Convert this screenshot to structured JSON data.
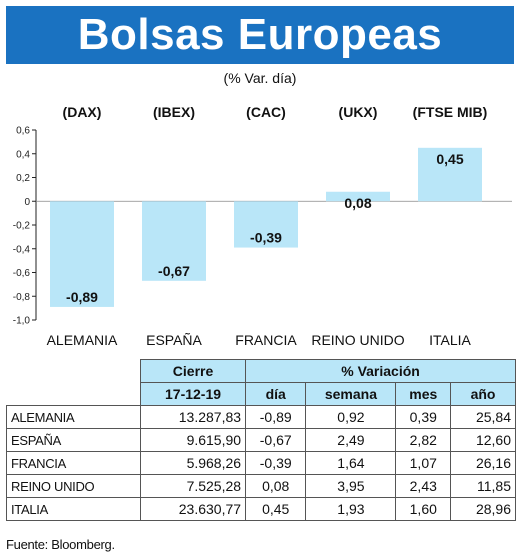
{
  "title": "Bolsas Europeas",
  "subtitle": "(% Var. día)",
  "chart_data": {
    "type": "bar",
    "indices": [
      "(DAX)",
      "(IBEX)",
      "(CAC)",
      "(UKX)",
      "(FTSE MIB)"
    ],
    "categories": [
      "ALEMANIA",
      "ESPAÑA",
      "FRANCIA",
      "REINO UNIDO",
      "ITALIA"
    ],
    "values": [
      -0.89,
      -0.67,
      -0.39,
      0.08,
      0.45
    ],
    "value_labels": [
      "-0,89",
      "-0,67",
      "-0,39",
      "0,08",
      "0,45"
    ],
    "ylim": [
      -1.0,
      0.6
    ],
    "yticks": [
      0.6,
      0.4,
      0.2,
      0,
      -0.2,
      -0.4,
      -0.6,
      -0.8,
      -1.0
    ],
    "ytick_labels": [
      "0,6",
      "0,4",
      "0,2",
      "0",
      "-0,2",
      "-0,4",
      "-0,6",
      "-0,8",
      "-1,0"
    ],
    "bar_color": "#b9e6f8",
    "grid": false
  },
  "table": {
    "header_cierre": "Cierre",
    "header_variacion": "% Variación",
    "date": "17-12-19",
    "col_dia": "día",
    "col_semana": "semana",
    "col_mes": "mes",
    "col_anio": "año",
    "rows": [
      {
        "country": "ALEMANIA",
        "cierre": "13.287,83",
        "dia": "-0,89",
        "semana": "0,92",
        "mes": "0,39",
        "anio": "25,84"
      },
      {
        "country": "ESPAÑA",
        "cierre": "9.615,90",
        "dia": "-0,67",
        "semana": "2,49",
        "mes": "2,82",
        "anio": "12,60"
      },
      {
        "country": "FRANCIA",
        "cierre": "5.968,26",
        "dia": "-0,39",
        "semana": "1,64",
        "mes": "1,07",
        "anio": "26,16"
      },
      {
        "country": "REINO UNIDO",
        "cierre": "7.525,28",
        "dia": "0,08",
        "semana": "3,95",
        "mes": "2,43",
        "anio": "11,85"
      },
      {
        "country": "ITALIA",
        "cierre": "23.630,77",
        "dia": "0,45",
        "semana": "1,93",
        "mes": "1,60",
        "anio": "28,96"
      }
    ]
  },
  "source": "Fuente: Bloomberg.",
  "colors": {
    "title_band": "#1a72c1",
    "accent_light": "#b9e6f8"
  }
}
